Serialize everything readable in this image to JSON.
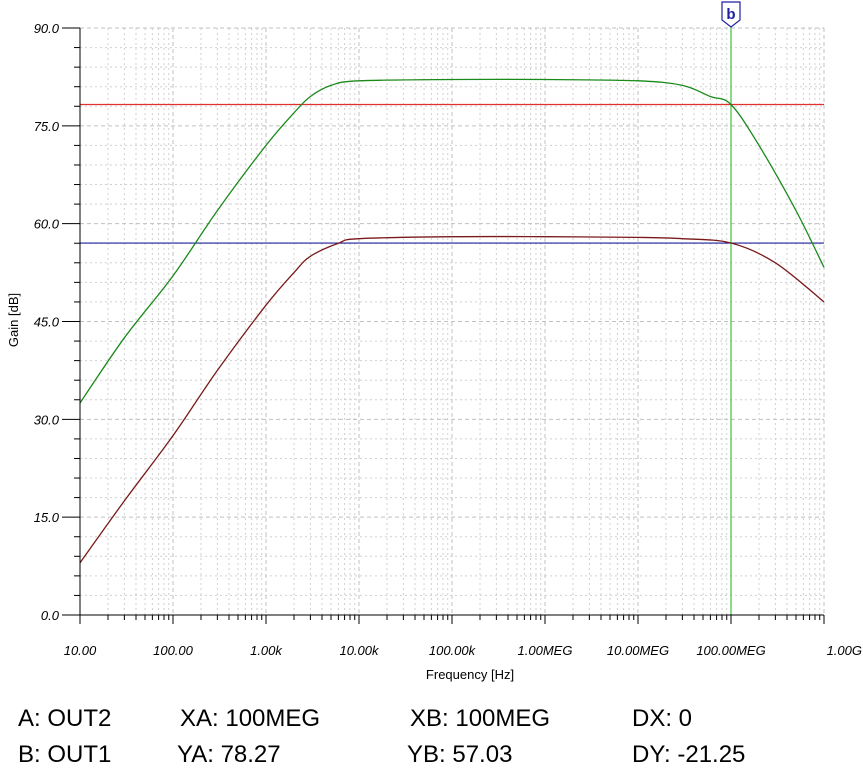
{
  "chart_data": {
    "type": "line",
    "xlabel": "Frequency [Hz]",
    "ylabel": "Gain [dB]",
    "x_scale": "log",
    "xlim": [
      10,
      1000000000
    ],
    "ylim": [
      0,
      90
    ],
    "grid": true,
    "x_ticks": [
      {
        "value": 10,
        "label": "10.00"
      },
      {
        "value": 100,
        "label": "100.00"
      },
      {
        "value": 1000,
        "label": "1.00k"
      },
      {
        "value": 10000,
        "label": "10.00k"
      },
      {
        "value": 100000,
        "label": "100.00k"
      },
      {
        "value": 1000000,
        "label": "1.00MEG"
      },
      {
        "value": 10000000,
        "label": "10.00MEG"
      },
      {
        "value": 100000000,
        "label": "100.00MEG"
      },
      {
        "value": 1000000000,
        "label": "1.00G"
      }
    ],
    "y_ticks": [
      {
        "value": 0,
        "label": "0.0"
      },
      {
        "value": 15,
        "label": "15.0"
      },
      {
        "value": 30,
        "label": "30.0"
      },
      {
        "value": 45,
        "label": "45.0"
      },
      {
        "value": 60,
        "label": "60.0"
      },
      {
        "value": 75,
        "label": "75.0"
      },
      {
        "value": 90,
        "label": "90.0"
      }
    ],
    "series": [
      {
        "color": "#1a8a1a",
        "points": [
          [
            10,
            32.5
          ],
          [
            30,
            42.5
          ],
          [
            100,
            52
          ],
          [
            300,
            62
          ],
          [
            1000,
            72
          ],
          [
            2000,
            77
          ],
          [
            3000,
            79.5
          ],
          [
            5000,
            81.2
          ],
          [
            10000,
            81.9
          ],
          [
            100000,
            82.1
          ],
          [
            1000000,
            82.1
          ],
          [
            10000000,
            81.9
          ],
          [
            30000000,
            81.2
          ],
          [
            60000000,
            79.5
          ],
          [
            100000000,
            78.27
          ],
          [
            200000000,
            72
          ],
          [
            500000000,
            62
          ],
          [
            1000000000,
            53.3
          ]
        ]
      },
      {
        "color": "#7a1a1a",
        "points": [
          [
            10,
            8
          ],
          [
            30,
            17.5
          ],
          [
            100,
            27.5
          ],
          [
            300,
            37.5
          ],
          [
            1000,
            47.5
          ],
          [
            2000,
            52.5
          ],
          [
            3000,
            55
          ],
          [
            6000,
            57
          ],
          [
            10000,
            57.7
          ],
          [
            100000,
            58
          ],
          [
            1000000,
            58
          ],
          [
            10000000,
            57.9
          ],
          [
            30000000,
            57.7
          ],
          [
            100000000,
            57.03
          ],
          [
            300000000,
            54
          ],
          [
            1000000000,
            48
          ]
        ]
      }
    ],
    "cursor_lines": [
      {
        "type": "horizontal",
        "value": 78.27,
        "color": "#e03030"
      },
      {
        "type": "horizontal",
        "value": 57.03,
        "color": "#2020a0"
      },
      {
        "type": "vertical",
        "value": 100000000,
        "color": "#40c040"
      }
    ],
    "cursor_marker_label": "b",
    "readout": {
      "a_trace": "A: OUT2",
      "b_trace": "B: OUT1",
      "xa": "XA: 100MEG",
      "ya": "YA: 78.27",
      "xb": "XB: 100MEG",
      "yb": "YB: 57.03",
      "dx": "DX: 0",
      "dy": "DY: -21.25"
    },
    "colors": {
      "marker": "#2020a0",
      "major_grid": "#c0c0c0",
      "minor_grid": "#d0d0d0"
    }
  }
}
